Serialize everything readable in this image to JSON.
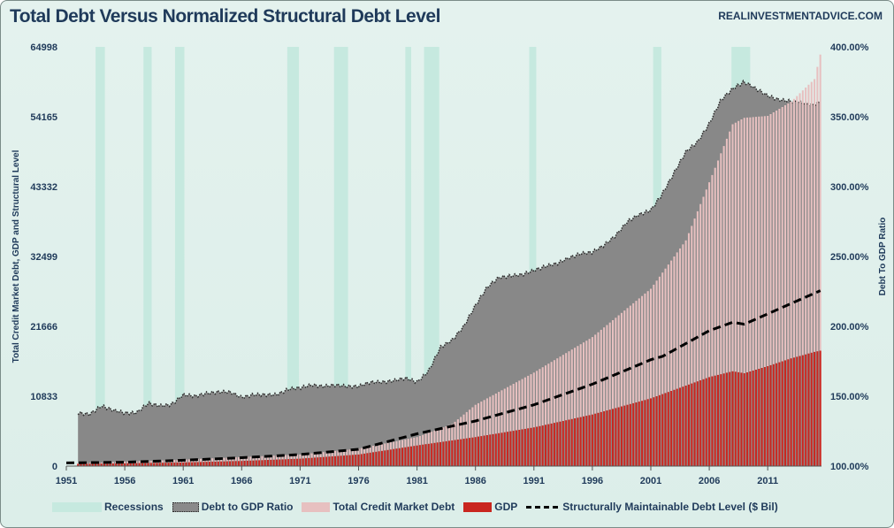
{
  "title": "Total Debt Versus Normalized Structural Debt Level",
  "source": "REALINVESTMENTADVICE.COM",
  "chart_data": {
    "type": "area",
    "title": "Total Debt Versus Normalized Structural Debt Level",
    "ylabel_left": "Total Credit Market Debt, GDP and Structural Level",
    "ylabel_right": "Debt To GDP Ratio",
    "y_left_ticks": [
      "0",
      "10833",
      "21666",
      "32499",
      "43332",
      "54165",
      "64998"
    ],
    "y_left_lim": [
      0,
      64998
    ],
    "y_right_ticks": [
      "100.00%",
      "150.00%",
      "200.00%",
      "250.00%",
      "300.00%",
      "350.00%",
      "400.00%"
    ],
    "y_right_lim": [
      100,
      400
    ],
    "x_ticks": [
      "1951",
      "1956",
      "1961",
      "1966",
      "1971",
      "1976",
      "1981",
      "1986",
      "1991",
      "1996",
      "2001",
      "2006",
      "2011"
    ],
    "x_lim": [
      1951,
      2015.6
    ],
    "grid": false,
    "legend_position": "bottom",
    "recessions": [
      [
        1953.5,
        1954.3
      ],
      [
        1957.6,
        1958.3
      ],
      [
        1960.3,
        1961.1
      ],
      [
        1969.9,
        1970.9
      ],
      [
        1973.9,
        1975.1
      ],
      [
        1980.0,
        1980.5
      ],
      [
        1981.6,
        1982.9
      ],
      [
        1990.6,
        1991.2
      ],
      [
        2001.2,
        2001.9
      ],
      [
        2007.9,
        2009.5
      ]
    ],
    "series": [
      {
        "name": "Recessions",
        "kind": "band",
        "color": "#c6e9df"
      },
      {
        "name": "Debt to GDP Ratio",
        "axis": "right",
        "kind": "area",
        "color": "#8a8a8a",
        "x": [
          1952,
          1953,
          1954,
          1955,
          1956,
          1957,
          1958,
          1959,
          1960,
          1961,
          1962,
          1963,
          1964,
          1965,
          1966,
          1967,
          1968,
          1969,
          1970,
          1971,
          1972,
          1973,
          1974,
          1975,
          1976,
          1977,
          1978,
          1979,
          1980,
          1981,
          1982,
          1983,
          1984,
          1985,
          1986,
          1987,
          1988,
          1989,
          1990,
          1991,
          1992,
          1993,
          1994,
          1995,
          1996,
          1997,
          1998,
          1999,
          2000,
          2001,
          2002,
          2003,
          2004,
          2005,
          2006,
          2007,
          2008,
          2009,
          2010,
          2011,
          2012,
          2013,
          2014,
          2015,
          2015.5
        ],
        "values": [
          138,
          137,
          143,
          140,
          138,
          138,
          145,
          143,
          144,
          151,
          150,
          152,
          153,
          153,
          149,
          151,
          151,
          151,
          155,
          156,
          158,
          157,
          158,
          157,
          157,
          160,
          160,
          161,
          163,
          160,
          168,
          185,
          190,
          200,
          215,
          228,
          235,
          236,
          237,
          240,
          243,
          245,
          249,
          252,
          253,
          258,
          265,
          275,
          280,
          283,
          295,
          310,
          325,
          332,
          345,
          362,
          370,
          375,
          370,
          365,
          362,
          361,
          360,
          358,
          361
        ]
      },
      {
        "name": "Total Credit Market Debt",
        "axis": "left",
        "kind": "bars",
        "color": "#e7c0c0",
        "x": [
          1952,
          1956,
          1961,
          1966,
          1971,
          1976,
          1981,
          1984,
          1986,
          1991,
          1996,
          2001,
          2004,
          2006,
          2008,
          2009,
          2011,
          2013,
          2015,
          2015.5
        ],
        "values": [
          400,
          700,
          1000,
          1400,
          1800,
          2700,
          4500,
          6500,
          9500,
          14500,
          20000,
          27500,
          35000,
          44000,
          53000,
          54000,
          54300,
          56500,
          60000,
          63800
        ]
      },
      {
        "name": "GDP",
        "axis": "left",
        "kind": "bars",
        "color": "#c9261f",
        "x": [
          1952,
          1956,
          1961,
          1966,
          1971,
          1976,
          1981,
          1986,
          1991,
          1996,
          2001,
          2006,
          2008,
          2009,
          2011,
          2013,
          2015,
          2015.5
        ],
        "values": [
          340,
          430,
          560,
          800,
          1150,
          1800,
          3200,
          4500,
          6000,
          8000,
          10500,
          13800,
          14700,
          14400,
          15500,
          16700,
          17700,
          17900
        ]
      },
      {
        "name": "Structurally Maintainable Debt Level ($ Bil)",
        "axis": "left",
        "kind": "dashed-line",
        "color": "#000000",
        "x": [
          1951,
          1956,
          1961,
          1966,
          1971,
          1976,
          1981,
          1986,
          1991,
          1996,
          2001,
          2002,
          2006,
          2008,
          2009,
          2010,
          2015.5
        ],
        "values": [
          500,
          600,
          900,
          1300,
          1800,
          2600,
          5000,
          7000,
          9500,
          12700,
          16500,
          17000,
          21000,
          22300,
          22000,
          22800,
          27200
        ]
      }
    ]
  },
  "legend": [
    {
      "label": "Recessions",
      "swatch": "rec"
    },
    {
      "label": "Debt to GDP Ratio",
      "swatch": "ratio"
    },
    {
      "label": "Total Credit Market Debt",
      "swatch": "debt"
    },
    {
      "label": "GDP",
      "swatch": "gdp"
    },
    {
      "label": "Structurally Maintainable Debt Level ($ Bil)",
      "swatch": "dash"
    }
  ]
}
